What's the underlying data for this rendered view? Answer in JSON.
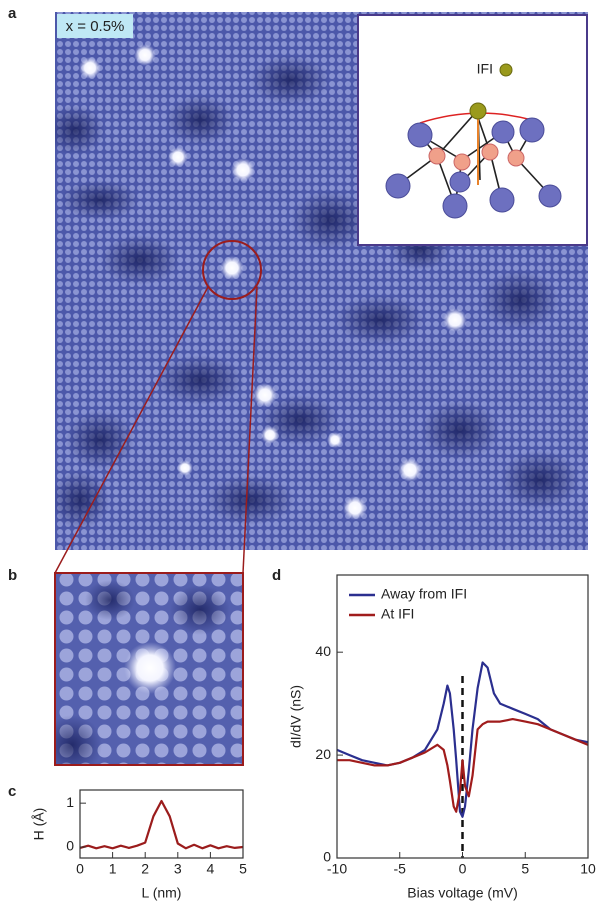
{
  "panel_labels": [
    "a",
    "b",
    "c",
    "d"
  ],
  "image_label": "x = 0.5%",
  "inset_label": "IFI",
  "chart_data": [
    {
      "type": "line",
      "x_label": "L (nm)",
      "y_label": "H (Å)",
      "x": [
        0,
        0.25,
        0.5,
        0.75,
        1,
        1.25,
        1.5,
        1.75,
        2,
        2.25,
        2.5,
        2.75,
        3,
        3.25,
        3.5,
        3.75,
        4,
        4.25,
        4.5,
        4.75,
        5
      ],
      "series": [
        {
          "name": null,
          "color": "#9b1c1c",
          "values": [
            -0.02,
            0.03,
            -0.03,
            0.02,
            -0.03,
            0.03,
            -0.02,
            0.03,
            0.1,
            0.7,
            1.05,
            0.7,
            0.08,
            -0.03,
            0.05,
            -0.03,
            0.04,
            -0.03,
            0.02,
            -0.02,
            0
          ]
        }
      ],
      "xlim": [
        0,
        5
      ],
      "xticks": [
        0,
        1,
        2,
        3,
        4,
        5
      ],
      "ylim": [
        -0.25,
        1.3
      ],
      "yticks": [
        0,
        1
      ],
      "legend": false
    },
    {
      "type": "line",
      "x_label": "Bias voltage (mV)",
      "y_label": "dI/dV (nS)",
      "x": [
        -10,
        -9,
        -8,
        -7,
        -6,
        -5,
        -4,
        -3,
        -2,
        -1.5,
        -1.2,
        -1,
        -0.7,
        -0.5,
        -0.2,
        0,
        0.2,
        0.5,
        0.8,
        1.2,
        1.6,
        2,
        2.5,
        3,
        4,
        5,
        6,
        7,
        8,
        9,
        10
      ],
      "series": [
        {
          "name": "Away from IFI",
          "color": "#2b2f8f",
          "values": [
            21,
            20,
            19,
            18.5,
            18,
            18.5,
            19.5,
            21,
            25,
            30,
            33.5,
            32,
            25,
            19,
            9,
            8,
            10,
            17,
            25,
            33,
            38,
            37,
            32,
            30,
            29,
            28,
            27,
            25,
            24,
            23,
            22.5
          ]
        },
        {
          "name": "At IFI",
          "color": "#a01c1c",
          "values": [
            19,
            19,
            18.5,
            18,
            18,
            18.5,
            19.5,
            20.5,
            22,
            21,
            18,
            15,
            10,
            9,
            13,
            19,
            14,
            12,
            16,
            25,
            26,
            26.5,
            26.5,
            26.5,
            27,
            26.5,
            26,
            25,
            24,
            23,
            22
          ]
        }
      ],
      "xlim": [
        -10,
        10
      ],
      "xticks": [
        -10,
        -5,
        0,
        5,
        10
      ],
      "ylim": [
        0,
        55
      ],
      "yticks": [
        0,
        20,
        40
      ],
      "legend": "upper left"
    }
  ]
}
